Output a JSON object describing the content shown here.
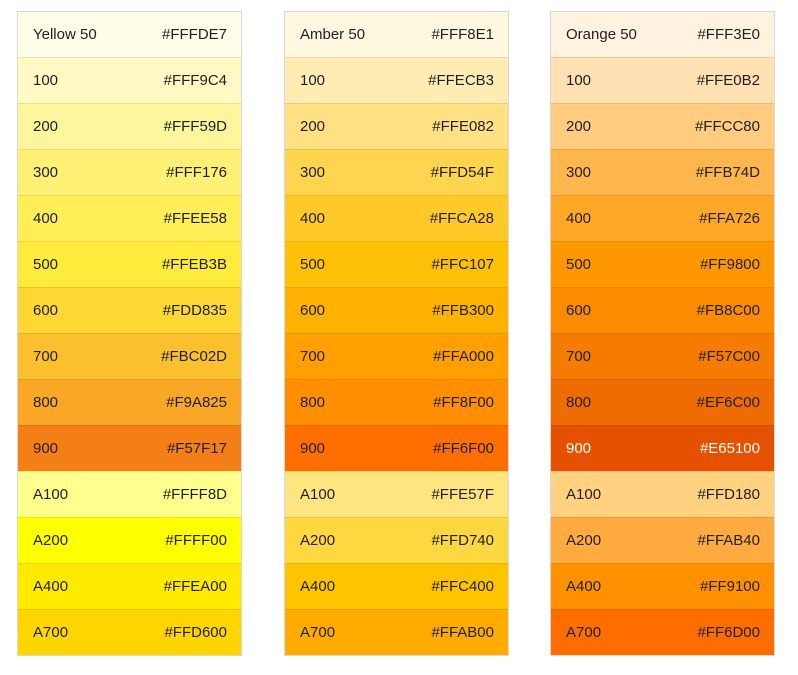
{
  "palettes": [
    {
      "name": "Yellow",
      "swatches": [
        {
          "label": "Yellow 50",
          "hex": "#FFFDE7",
          "text": "#212121"
        },
        {
          "label": "100",
          "hex": "#FFF9C4",
          "text": "#212121"
        },
        {
          "label": "200",
          "hex": "#FFF59D",
          "text": "#212121"
        },
        {
          "label": "300",
          "hex": "#FFF176",
          "text": "#212121"
        },
        {
          "label": "400",
          "hex": "#FFEE58",
          "text": "#212121"
        },
        {
          "label": "500",
          "hex": "#FFEB3B",
          "text": "#212121"
        },
        {
          "label": "600",
          "hex": "#FDD835",
          "text": "#212121"
        },
        {
          "label": "700",
          "hex": "#FBC02D",
          "text": "#212121"
        },
        {
          "label": "800",
          "hex": "#F9A825",
          "text": "#212121"
        },
        {
          "label": "900",
          "hex": "#F57F17",
          "text": "#212121"
        },
        {
          "label": "A100",
          "hex": "#FFFF8D",
          "text": "#212121"
        },
        {
          "label": "A200",
          "hex": "#FFFF00",
          "text": "#212121"
        },
        {
          "label": "A400",
          "hex": "#FFEA00",
          "text": "#212121"
        },
        {
          "label": "A700",
          "hex": "#FFD600",
          "text": "#212121"
        }
      ]
    },
    {
      "name": "Amber",
      "swatches": [
        {
          "label": "Amber 50",
          "hex": "#FFF8E1",
          "text": "#212121"
        },
        {
          "label": "100",
          "hex": "#FFECB3",
          "text": "#212121"
        },
        {
          "label": "200",
          "hex": "#FFE082",
          "text": "#212121"
        },
        {
          "label": "300",
          "hex": "#FFD54F",
          "text": "#212121"
        },
        {
          "label": "400",
          "hex": "#FFCA28",
          "text": "#212121"
        },
        {
          "label": "500",
          "hex": "#FFC107",
          "text": "#212121"
        },
        {
          "label": "600",
          "hex": "#FFB300",
          "text": "#212121"
        },
        {
          "label": "700",
          "hex": "#FFA000",
          "text": "#212121"
        },
        {
          "label": "800",
          "hex": "#FF8F00",
          "text": "#212121"
        },
        {
          "label": "900",
          "hex": "#FF6F00",
          "text": "#212121"
        },
        {
          "label": "A100",
          "hex": "#FFE57F",
          "text": "#212121"
        },
        {
          "label": "A200",
          "hex": "#FFD740",
          "text": "#212121"
        },
        {
          "label": "A400",
          "hex": "#FFC400",
          "text": "#212121"
        },
        {
          "label": "A700",
          "hex": "#FFAB00",
          "text": "#212121"
        }
      ]
    },
    {
      "name": "Orange",
      "swatches": [
        {
          "label": "Orange 50",
          "hex": "#FFF3E0",
          "text": "#212121"
        },
        {
          "label": "100",
          "hex": "#FFE0B2",
          "text": "#212121"
        },
        {
          "label": "200",
          "hex": "#FFCC80",
          "text": "#212121"
        },
        {
          "label": "300",
          "hex": "#FFB74D",
          "text": "#212121"
        },
        {
          "label": "400",
          "hex": "#FFA726",
          "text": "#212121"
        },
        {
          "label": "500",
          "hex": "#FF9800",
          "text": "#212121"
        },
        {
          "label": "600",
          "hex": "#FB8C00",
          "text": "#212121"
        },
        {
          "label": "700",
          "hex": "#F57C00",
          "text": "#212121"
        },
        {
          "label": "800",
          "hex": "#EF6C00",
          "text": "#212121"
        },
        {
          "label": "900",
          "hex": "#E65100",
          "text": "#FFFFFF"
        },
        {
          "label": "A100",
          "hex": "#FFD180",
          "text": "#212121"
        },
        {
          "label": "A200",
          "hex": "#FFAB40",
          "text": "#212121"
        },
        {
          "label": "A400",
          "hex": "#FF9100",
          "text": "#212121"
        },
        {
          "label": "A700",
          "hex": "#FF6D00",
          "text": "#212121"
        }
      ]
    }
  ]
}
